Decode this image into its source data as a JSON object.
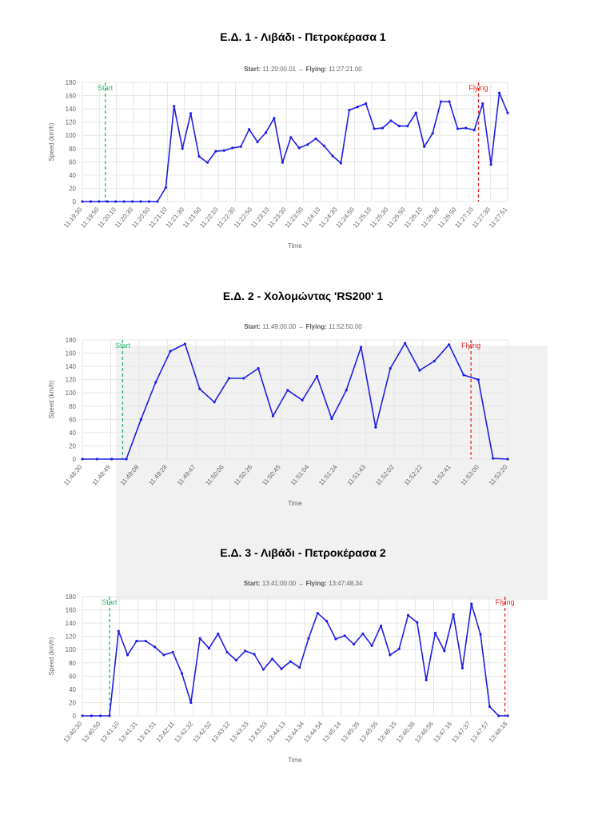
{
  "colors": {
    "line": "#1f1fe6",
    "start": "#2db46e",
    "flying": "#e62828",
    "grid": "#e6e6e6"
  },
  "charts": [
    {
      "title": "Ε.Δ. 1 - Λιβάδι - Πετροκέρασα 1",
      "subtitle": {
        "start_label": "Start:",
        "start_value": "11:20:00.01",
        "arrow": "→",
        "flying_label": "Flying:",
        "flying_value": "11:27:21.00"
      }
    },
    {
      "title": "Ε.Δ. 2 - Χολομώντας 'RS200' 1",
      "subtitle": {
        "start_label": "Start:",
        "start_value": "11:49:00.00",
        "arrow": "→",
        "flying_label": "Flying:",
        "flying_value": "11:52:50.00"
      }
    },
    {
      "title": "Ε.Δ. 3 - Λιβάδι - Πετροκέρασα 2",
      "subtitle": {
        "start_label": "Start:",
        "start_value": "13:41:00.00",
        "arrow": "→",
        "flying_label": "Flying:",
        "flying_value": "13:47:48.34"
      }
    }
  ],
  "chart_data": [
    {
      "type": "line",
      "xlabel": "Time",
      "ylabel": "Speed (km/h)",
      "ylim": [
        0,
        180
      ],
      "yticks": [
        0,
        20,
        40,
        60,
        80,
        100,
        120,
        140,
        160,
        180
      ],
      "xticks": [
        "11:19:30",
        "11:19:50",
        "11:20:10",
        "11:20:30",
        "11:20:50",
        "11:21:10",
        "11:21:30",
        "11:21:50",
        "11:22:10",
        "11:22:30",
        "11:22:50",
        "11:23:10",
        "11:23:30",
        "11:23:50",
        "11:24:10",
        "11:24:30",
        "11:24:50",
        "11:25:10",
        "11:25:30",
        "11:25:50",
        "11:26:10",
        "11:26:30",
        "11:26:50",
        "11:27:10",
        "11:27:30",
        "11:27:51"
      ],
      "grid": true,
      "markers": [
        {
          "label": "Start",
          "x_index": 2.75
        },
        {
          "label": "Flying",
          "x_index": 47.5
        }
      ],
      "values": [
        0,
        0,
        0,
        0,
        0,
        0,
        0,
        0,
        0,
        0,
        21,
        144,
        80,
        133,
        68,
        59,
        76,
        77,
        81,
        83,
        109,
        90,
        104,
        126,
        59,
        97,
        81,
        86,
        95,
        84,
        69,
        58,
        138,
        143,
        148,
        110,
        111,
        122,
        114,
        114,
        134,
        83,
        103,
        151,
        151,
        110,
        111,
        108,
        148,
        56,
        164,
        134
      ]
    },
    {
      "type": "line",
      "xlabel": "Time",
      "ylabel": "Speed (km/h)",
      "ylim": [
        0,
        180
      ],
      "yticks": [
        0,
        20,
        40,
        60,
        80,
        100,
        120,
        140,
        160,
        180
      ],
      "xticks": [
        "11:48:30",
        "11:48:49",
        "11:49:08",
        "11:49:28",
        "11:49:47",
        "11:50:06",
        "11:50:26",
        "11:50:45",
        "11:51:04",
        "11:51:24",
        "11:51:43",
        "11:52:02",
        "11:52:22",
        "11:52:41",
        "11:53:00",
        "11:53:20"
      ],
      "grid": true,
      "markers": [
        {
          "label": "Start",
          "x_index": 2.75
        },
        {
          "label": "Flying",
          "x_index": 26.5
        }
      ],
      "values": [
        0,
        0,
        0,
        0,
        60,
        116,
        163,
        174,
        106,
        86,
        122,
        122,
        137,
        65,
        104,
        89,
        125,
        61,
        104,
        169,
        48,
        137,
        175,
        134,
        148,
        173,
        127,
        120,
        1,
        0
      ]
    },
    {
      "type": "line",
      "xlabel": "Time",
      "ylabel": "Speed (km/h)",
      "ylim": [
        0,
        180
      ],
      "yticks": [
        0,
        20,
        40,
        60,
        80,
        100,
        120,
        140,
        160,
        180
      ],
      "xticks": [
        "13:40:30",
        "13:40:50",
        "13:41:10",
        "13:41:31",
        "13:41:51",
        "13:42:11",
        "13:42:32",
        "13:42:52",
        "13:43:12",
        "13:43:33",
        "13:43:53",
        "13:44:13",
        "13:44:34",
        "13:44:54",
        "13:45:14",
        "13:45:35",
        "13:45:55",
        "13:46:15",
        "13:46:36",
        "13:46:56",
        "13:47:16",
        "13:47:37",
        "13:47:57",
        "13:48:18"
      ],
      "grid": true,
      "markers": [
        {
          "label": "Start",
          "x_index": 3
        },
        {
          "label": "Flying",
          "x_index": 46.7
        }
      ],
      "values": [
        0,
        0,
        0,
        0,
        128,
        92,
        113,
        113,
        104,
        92,
        96,
        64,
        20,
        117,
        102,
        124,
        96,
        84,
        98,
        93,
        70,
        86,
        71,
        82,
        73,
        117,
        155,
        143,
        116,
        121,
        108,
        124,
        106,
        136,
        92,
        101,
        152,
        141,
        54,
        125,
        98,
        153,
        72,
        169,
        123,
        14,
        0,
        0
      ]
    }
  ]
}
